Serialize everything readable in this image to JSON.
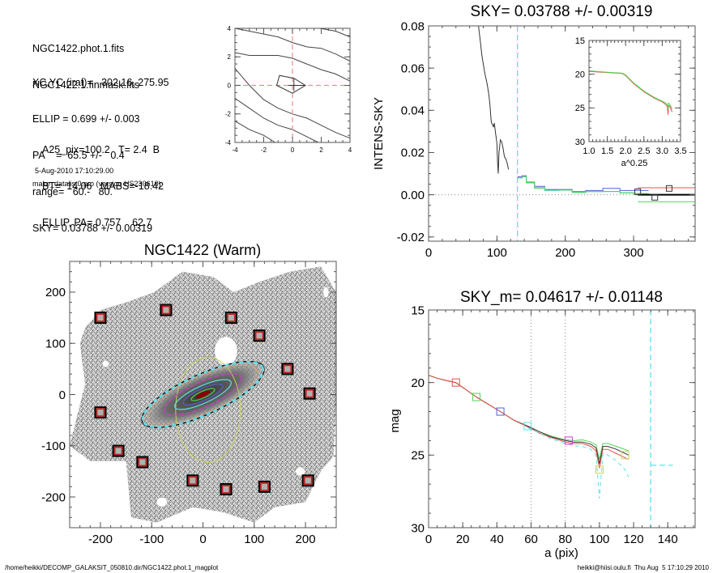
{
  "info_panel": {
    "files": [
      "NGC1422.phot.1.fits",
      "NGC1422.1.finmask.fits"
    ],
    "params": [
      "XC,YC (iraf)=   302.16, 275.95",
      "ELLIP = 0.699 +/- 0.003",
      "PA    =  65.5 +/-   0.4",
      "range=   60.-   80.",
      "SKY= 0.03788 +/- 0.00319"
    ],
    "derived": [
      "A25_pix=100.2   T= 2.4  B",
      "BT=  14.06   MABS=-18.42",
      "ELLIP, PA= 0.757    62.7"
    ],
    "date": "5-Aug-2010 17:10:29.00",
    "program": "make_datalist0.pro (version HS230610)"
  },
  "footer": {
    "path": "/home/heikki/DECOMP_GALAKSIT_050810.dir/NGC1422.phot.1_magplot",
    "user_time": "heikki@hiisi.oulu.fi  Thu Aug  5 17:10:29 2010"
  },
  "colors": {
    "axis": "#555555",
    "cyan": "#5fe0ea",
    "red": "#e8504a",
    "green": "#4fd44f",
    "blue": "#5560d0",
    "magenta": "#d040d0",
    "olive": "#c8d060",
    "pinkdash": "#e89090",
    "curve": "#333333"
  },
  "chart_data": [
    {
      "id": "center-contour",
      "type": "line",
      "title": "",
      "xlabel": "",
      "ylabel": "",
      "xlim": [
        -4,
        4
      ],
      "ylim": [
        -4,
        4
      ],
      "xticks": [
        "-4",
        "-2",
        "0",
        "2",
        "4"
      ],
      "yticks": [
        "-4",
        "-2",
        "0",
        "2",
        "4"
      ],
      "contours": [
        [
          [
            -4,
            4.0
          ],
          [
            -3,
            3.8
          ],
          [
            -1,
            3.4
          ],
          [
            0,
            3.0
          ],
          [
            1,
            2.7
          ],
          [
            2,
            2.6
          ],
          [
            3,
            2.2
          ],
          [
            4,
            1.7
          ]
        ],
        [
          [
            -4,
            2.3
          ],
          [
            -3,
            2.1
          ],
          [
            -2,
            2.1
          ],
          [
            -1,
            2.1
          ],
          [
            0,
            1.9
          ],
          [
            1,
            1.5
          ],
          [
            2,
            1.1
          ],
          [
            3,
            0.8
          ],
          [
            4,
            0.3
          ]
        ],
        [
          [
            1.9,
            4.0
          ],
          [
            3,
            3.8
          ],
          [
            4,
            3.4
          ]
        ],
        [
          [
            -4,
            1.2
          ],
          [
            -3.5,
            0.6
          ],
          [
            -3,
            0
          ],
          [
            -2,
            -1.0
          ],
          [
            -1,
            -1.6
          ],
          [
            0,
            -2.0
          ],
          [
            1,
            -2.3
          ],
          [
            2,
            -2.8
          ],
          [
            3,
            -3.3
          ],
          [
            4,
            -3.7
          ]
        ],
        [
          [
            -4,
            -0.9
          ],
          [
            -3,
            -1.6
          ],
          [
            -2,
            -2.3
          ],
          [
            -1,
            -2.8
          ],
          [
            0,
            -3.1
          ],
          [
            1,
            -3.6
          ],
          [
            1.8,
            -4.0
          ]
        ],
        [
          [
            -4,
            -2.5
          ],
          [
            -3,
            -3.1
          ],
          [
            -2,
            -3.5
          ],
          [
            -1.2,
            -4.0
          ]
        ]
      ],
      "center_polygon": [
        [
          -1.1,
          0
        ],
        [
          -0.9,
          0.7
        ],
        [
          0.1,
          0.5
        ],
        [
          0.9,
          0
        ],
        [
          0,
          -0.55
        ],
        [
          -1.1,
          0
        ]
      ],
      "crosshair": [
        0,
        0
      ]
    },
    {
      "id": "sky-profile",
      "type": "line",
      "title": "SKY= 0.03788 +/- 0.00319",
      "xlabel": "",
      "ylabel": "INTENS-SKY",
      "xlim": [
        0,
        390
      ],
      "ylim": [
        -0.022,
        0.08
      ],
      "xticks": [
        "0",
        "100",
        "200",
        "300"
      ],
      "yticks": [
        "-0.02",
        "0.00",
        "0.02",
        "0.04",
        "0.06",
        "0.08"
      ],
      "sky_limit_x": 130,
      "series": [
        {
          "name": "inner-profile",
          "color": "curve",
          "x": [
            73,
            76,
            78,
            80,
            82,
            84,
            86,
            88,
            89,
            90,
            91,
            92,
            94,
            95,
            96,
            97,
            98,
            99,
            100,
            101,
            102,
            103,
            105,
            107,
            109,
            111,
            113,
            115,
            117
          ],
          "y": [
            0.08,
            0.072,
            0.066,
            0.062,
            0.058,
            0.055,
            0.052,
            0.048,
            0.045,
            0.042,
            0.037,
            0.034,
            0.033,
            0.032,
            0.034,
            0.032,
            0.029,
            0.027,
            0.024,
            0.015,
            0.01,
            0.02,
            0.026,
            0.025,
            0.022,
            0.018,
            0.017,
            0.015,
            0.012
          ]
        },
        {
          "name": "blue-step",
          "color": "blue",
          "x": [
            130,
            137,
            143,
            155,
            170,
            190,
            210,
            230,
            255,
            280,
            300,
            322
          ],
          "y": [
            0.0085,
            0.009,
            0.006,
            0.004,
            0.0025,
            0.0025,
            0.0015,
            0.002,
            0.003,
            0.002,
            0.002,
            0.002
          ]
        },
        {
          "name": "cyan-step",
          "color": "cyan",
          "x": [
            130,
            137,
            143,
            155,
            170,
            190,
            210,
            230,
            255,
            280,
            300,
            310
          ],
          "y": [
            0.008,
            0.0085,
            0.0055,
            0.0035,
            0.002,
            0.0022,
            0.001,
            0.0015,
            0.0015,
            0.001,
            0.0005,
            0.0003
          ]
        },
        {
          "name": "green-step",
          "color": "green",
          "x": [
            130,
            137,
            143,
            155,
            170,
            190,
            210,
            230,
            255,
            280,
            300,
            322
          ],
          "y": [
            0.008,
            0.0085,
            0.0058,
            0.003,
            0.0022,
            0.0022,
            0.0012,
            0.0015,
            0.0016,
            0.0008,
            0.0006,
            0.0006
          ]
        }
      ],
      "sky_levels": [
        {
          "name": "upper",
          "color": "red",
          "x": [
            306,
            390
          ],
          "y": 0.0033
        },
        {
          "name": "zero",
          "color": "#000000",
          "x": [
            306,
            390
          ],
          "y": 0.0
        },
        {
          "name": "lower",
          "color": "green",
          "x": [
            306,
            390
          ],
          "y": -0.0033
        }
      ],
      "markers": [
        {
          "x": 306,
          "y": 0.0014
        },
        {
          "x": 331,
          "y": -0.0012
        },
        {
          "x": 352,
          "y": 0.003
        }
      ],
      "inset": {
        "xlabel": "a^0.25",
        "xlim": [
          1.0,
          3.5
        ],
        "ylim": [
          30,
          15
        ],
        "xticks": [
          "1.0",
          "1.5",
          "2.0",
          "2.5",
          "3.0",
          "3.5"
        ],
        "yticks": [
          "15",
          "20",
          "25",
          "30"
        ],
        "series": [
          {
            "name": "red",
            "color": "red",
            "x": [
              1.0,
              1.5,
              1.9,
              2.0,
              2.2,
              2.5,
              2.8,
              3.0,
              3.1,
              3.14,
              3.16,
              3.17,
              3.2,
              3.24,
              3.27
            ],
            "y": [
              19.6,
              19.75,
              19.9,
              20.2,
              21.3,
              22.6,
              23.6,
              24.1,
              24.5,
              24.8,
              26.0,
              24.8,
              24.7,
              25.2,
              25.6
            ]
          },
          {
            "name": "green",
            "color": "green",
            "x": [
              1.0,
              1.5,
              1.9,
              2.0,
              2.2,
              2.5,
              2.8,
              3.0,
              3.1,
              3.14,
              3.16,
              3.17,
              3.2,
              3.24,
              3.27
            ],
            "y": [
              19.5,
              19.7,
              19.85,
              20.1,
              21.2,
              22.5,
              23.5,
              24.0,
              24.3,
              24.5,
              25.2,
              24.3,
              24.4,
              24.8,
              25.2
            ]
          }
        ]
      }
    },
    {
      "id": "galaxy-map",
      "type": "scatter",
      "title": "NGC1422 (Warm)",
      "xlabel": "",
      "ylabel": "",
      "xlim": [
        -260,
        260
      ],
      "ylim": [
        -260,
        260
      ],
      "xticks": [
        "-200",
        "-100",
        "0",
        "100",
        "200"
      ],
      "yticks": [
        "-200",
        "-100",
        "0",
        "100",
        "200"
      ],
      "sky_boxes": [
        [
          -200,
          150
        ],
        [
          -72,
          165
        ],
        [
          55,
          150
        ],
        [
          110,
          115
        ],
        [
          165,
          50
        ],
        [
          208,
          2
        ],
        [
          -200,
          -35
        ],
        [
          -165,
          -110
        ],
        [
          -118,
          -132
        ],
        [
          -20,
          -168
        ],
        [
          45,
          -185
        ],
        [
          120,
          -180
        ],
        [
          205,
          -168
        ]
      ],
      "ellipses": [
        {
          "name": "outer-black",
          "a": 130,
          "ellip": 0.699,
          "pa": 65.5,
          "color": "#000000"
        },
        {
          "name": "cyan-dashed",
          "a": 128,
          "ellip": 0.699,
          "pa": 65.5,
          "color": "cyan"
        },
        {
          "name": "orange-dotted",
          "a": 115,
          "ellip": 0.69,
          "pa": 65.5,
          "color": "#e0a070"
        },
        {
          "name": "magenta",
          "a": 82,
          "ellip": 0.7,
          "pa": 65.5,
          "color": "magenta"
        },
        {
          "name": "cyan-inner",
          "a": 60,
          "ellip": 0.72,
          "pa": 65.5,
          "color": "cyan"
        },
        {
          "name": "blue",
          "a": 42,
          "ellip": 0.73,
          "pa": 65.5,
          "color": "blue"
        },
        {
          "name": "green",
          "a": 25,
          "ellip": 0.74,
          "pa": 65.5,
          "color": "green"
        },
        {
          "name": "core-red",
          "a": 14,
          "ellip": 0.75,
          "pa": 65.5,
          "color": "#8b0000"
        }
      ],
      "a25_circle": {
        "a": 100.2,
        "ellip": 0.25,
        "pa": 0,
        "color": "olive"
      }
    },
    {
      "id": "mag-profile",
      "type": "line",
      "title": "SKY_m=  0.04617 +/- 0.01148",
      "xlabel": "a (pix)",
      "ylabel": "mag",
      "xlim": [
        0,
        156
      ],
      "ylim": [
        30,
        15
      ],
      "xticks": [
        "0",
        "20",
        "40",
        "60",
        "80",
        "100",
        "120",
        "140"
      ],
      "yticks": [
        "15",
        "20",
        "25",
        "30"
      ],
      "range_lines": [
        60,
        80
      ],
      "sky_limit_x": 130,
      "series": [
        {
          "name": "green",
          "color": "green",
          "x": [
            0,
            5,
            10,
            16,
            22,
            28,
            35,
            42,
            50,
            58,
            65,
            72,
            80,
            85,
            90,
            95,
            98,
            100,
            102,
            105,
            110,
            117
          ],
          "y": [
            19.5,
            19.7,
            19.85,
            20.0,
            20.5,
            21.0,
            21.5,
            22.0,
            22.6,
            23.0,
            23.4,
            23.7,
            23.95,
            24.0,
            23.95,
            24.1,
            24.3,
            25.3,
            24.2,
            24.2,
            24.4,
            24.7
          ]
        },
        {
          "name": "black",
          "color": "curve",
          "x": [
            0,
            5,
            10,
            16,
            22,
            28,
            35,
            42,
            50,
            58,
            65,
            72,
            80,
            85,
            90,
            95,
            98,
            100,
            102,
            105,
            110,
            117
          ],
          "y": [
            19.5,
            19.7,
            19.85,
            20.0,
            20.5,
            21.0,
            21.5,
            22.0,
            22.6,
            23.0,
            23.4,
            23.75,
            24.0,
            24.1,
            24.1,
            24.25,
            24.5,
            25.6,
            24.4,
            24.4,
            24.6,
            25.0
          ]
        },
        {
          "name": "red",
          "color": "red",
          "x": [
            0,
            5,
            10,
            16,
            22,
            28,
            35,
            42,
            50,
            58,
            65,
            72,
            80,
            85,
            90,
            95,
            98,
            100,
            102,
            105,
            110,
            117
          ],
          "y": [
            19.5,
            19.7,
            19.85,
            20.0,
            20.5,
            21.0,
            21.5,
            22.0,
            22.6,
            23.05,
            23.5,
            23.8,
            24.1,
            24.2,
            24.2,
            24.4,
            24.7,
            25.9,
            24.6,
            24.6,
            24.9,
            25.3
          ]
        },
        {
          "name": "cyan-dashed",
          "color": "cyan",
          "dashed": true,
          "x": [
            58,
            65,
            72,
            80,
            85,
            90,
            95,
            98,
            100,
            102,
            105,
            110,
            115,
            117
          ],
          "y": [
            23.1,
            23.5,
            23.9,
            24.2,
            24.35,
            24.4,
            24.6,
            25.0,
            28.0,
            24.9,
            25.0,
            25.4,
            26.0,
            26.5
          ]
        }
      ],
      "markers": [
        {
          "x": 16,
          "y": 20.0,
          "color": "red"
        },
        {
          "x": 28,
          "y": 21.0,
          "color": "green"
        },
        {
          "x": 42,
          "y": 22.0,
          "color": "blue"
        },
        {
          "x": 58,
          "y": 23.0,
          "color": "cyan"
        },
        {
          "x": 82,
          "y": 24.0,
          "color": "magenta"
        },
        {
          "x": 100,
          "y": 26.0,
          "color": "olive"
        },
        {
          "x": 115,
          "y": 25.0,
          "color": "olive"
        }
      ],
      "sky_mag_segment": {
        "x": [
          130,
          143
        ],
        "y": 25.7
      }
    }
  ]
}
